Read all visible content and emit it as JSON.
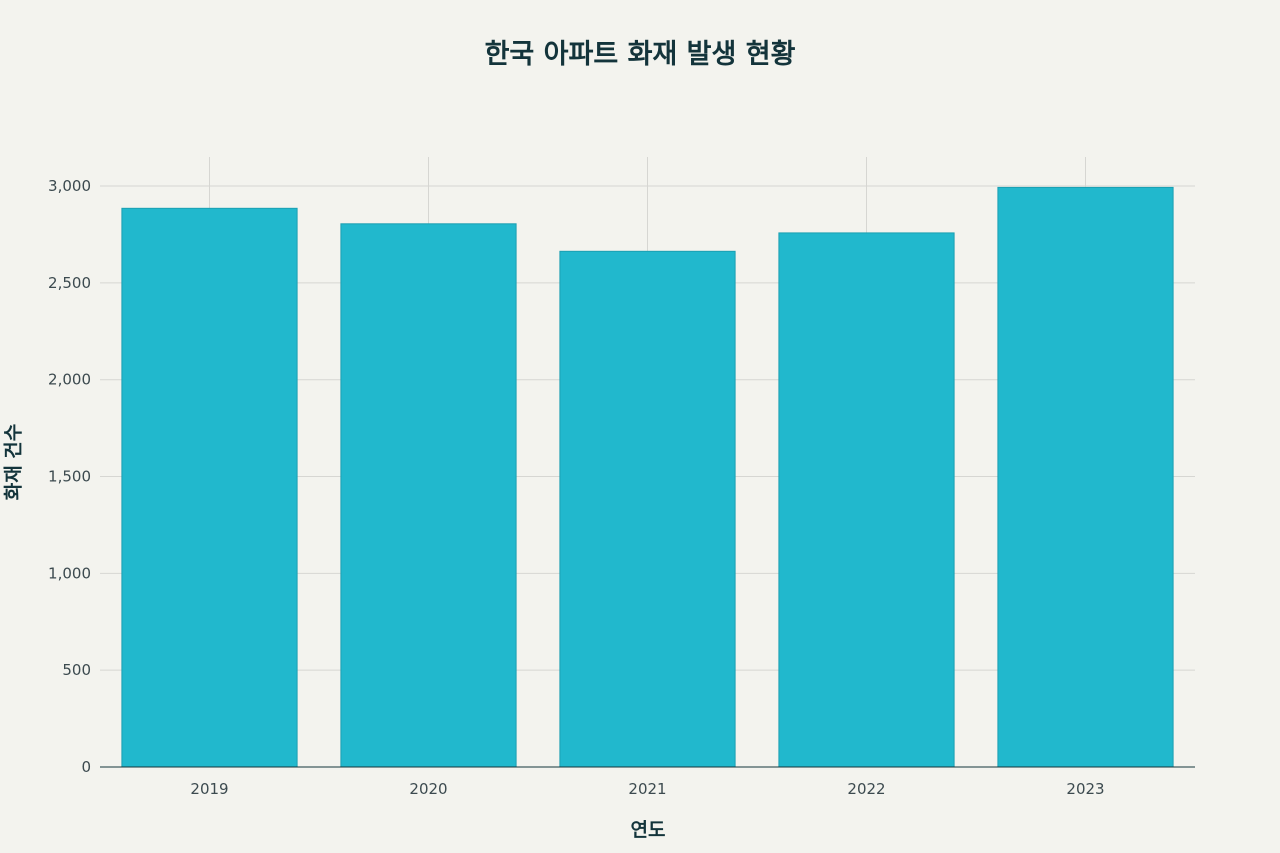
{
  "chart_data": {
    "type": "bar",
    "title": "한국 아파트 화재 발생 현황",
    "xlabel": "연도",
    "ylabel": "화재 건수",
    "categories": [
      "2019",
      "2020",
      "2021",
      "2022",
      "2023"
    ],
    "values": [
      2885,
      2805,
      2663,
      2758,
      2993
    ],
    "ylim": [
      0,
      3150
    ],
    "yticks": [
      0,
      500,
      1000,
      1500,
      2000,
      2500,
      3000
    ],
    "ytick_labels": [
      "0",
      "500",
      "1,000",
      "1,500",
      "2,000",
      "2,500",
      "3,000"
    ],
    "grid": true,
    "bar_color": "#21b8cd"
  }
}
